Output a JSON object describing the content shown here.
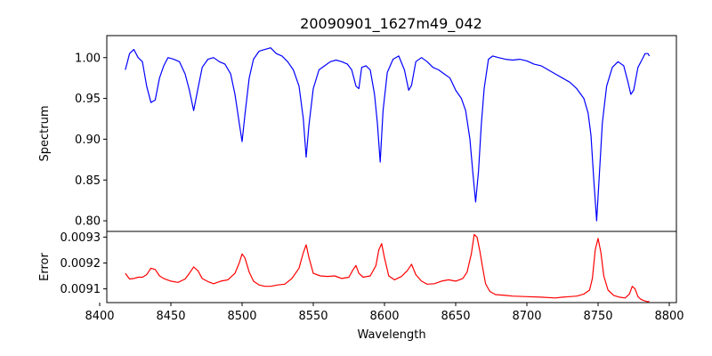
{
  "chart_data": [
    {
      "type": "line",
      "panel": "top",
      "title": "20090901_1627m49_042",
      "xlabel": "",
      "ylabel": "Spectrum",
      "xlim": [
        8405,
        8805
      ],
      "ylim": [
        0.787,
        1.027
      ],
      "yticks": [
        0.8,
        0.85,
        0.9,
        0.95,
        1.0
      ],
      "ytick_labels": [
        "0.80",
        "0.85",
        "0.90",
        "0.95",
        "1.00"
      ],
      "grid": false,
      "series": [
        {
          "color": "#0000ff",
          "x": [
            8418,
            8421,
            8424,
            8427,
            8430,
            8433,
            8436,
            8439,
            8442,
            8445,
            8448,
            8452,
            8456,
            8460,
            8463,
            8466,
            8469,
            8472,
            8476,
            8480,
            8484,
            8488,
            8492,
            8495,
            8498,
            8500,
            8502,
            8505,
            8508,
            8512,
            8516,
            8520,
            8524,
            8528,
            8532,
            8536,
            8540,
            8543,
            8545,
            8547,
            8550,
            8554,
            8558,
            8562,
            8566,
            8570,
            8574,
            8577,
            8580,
            8582,
            8584,
            8587,
            8590,
            8593,
            8595,
            8597,
            8599,
            8602,
            8606,
            8610,
            8614,
            8617,
            8619,
            8622,
            8626,
            8630,
            8634,
            8638,
            8642,
            8646,
            8650,
            8654,
            8657,
            8660,
            8662,
            8664,
            8666,
            8668,
            8670,
            8673,
            8676,
            8680,
            8685,
            8690,
            8695,
            8700,
            8705,
            8710,
            8715,
            8720,
            8725,
            8730,
            8735,
            8740,
            8743,
            8745,
            8747,
            8749,
            8751,
            8753,
            8756,
            8760,
            8764,
            8768,
            8771,
            8773,
            8775,
            8778,
            8781,
            8783,
            8785,
            8786
          ],
          "values": [
            0.985,
            1.005,
            1.01,
            1.0,
            0.995,
            0.965,
            0.945,
            0.948,
            0.975,
            0.99,
            1.0,
            0.998,
            0.995,
            0.98,
            0.96,
            0.935,
            0.962,
            0.988,
            0.998,
            1.0,
            0.995,
            0.992,
            0.98,
            0.955,
            0.92,
            0.897,
            0.93,
            0.975,
            0.998,
            1.008,
            1.01,
            1.012,
            1.005,
            1.002,
            0.995,
            0.985,
            0.965,
            0.925,
            0.878,
            0.918,
            0.962,
            0.985,
            0.99,
            0.995,
            0.997,
            0.995,
            0.992,
            0.985,
            0.965,
            0.962,
            0.988,
            0.99,
            0.985,
            0.955,
            0.92,
            0.872,
            0.935,
            0.982,
            0.998,
            1.002,
            0.985,
            0.96,
            0.966,
            0.995,
            1.0,
            0.995,
            0.988,
            0.985,
            0.98,
            0.975,
            0.96,
            0.95,
            0.935,
            0.9,
            0.86,
            0.823,
            0.86,
            0.918,
            0.962,
            0.998,
            1.002,
            1.0,
            0.998,
            0.997,
            0.998,
            0.996,
            0.992,
            0.99,
            0.985,
            0.98,
            0.975,
            0.97,
            0.962,
            0.95,
            0.932,
            0.905,
            0.85,
            0.8,
            0.86,
            0.92,
            0.965,
            0.988,
            0.995,
            0.99,
            0.97,
            0.955,
            0.96,
            0.988,
            0.998,
            1.005,
            1.005,
            1.002
          ]
        }
      ]
    },
    {
      "type": "line",
      "panel": "bottom",
      "title": "",
      "xlabel": "Wavelength",
      "ylabel": "Error",
      "xlim": [
        8405,
        8805
      ],
      "ylim": [
        0.009047,
        0.009322
      ],
      "xticks": [
        8400,
        8450,
        8500,
        8550,
        8600,
        8650,
        8700,
        8750,
        8800
      ],
      "xtick_labels": [
        "8400",
        "8450",
        "8500",
        "8550",
        "8600",
        "8650",
        "8700",
        "8750",
        "8800"
      ],
      "yticks": [
        0.0091,
        0.0092,
        0.0093
      ],
      "ytick_labels": [
        "0.0091",
        "0.0092",
        "0.0093"
      ],
      "grid": false,
      "series": [
        {
          "color": "#ff0000",
          "x": [
            8418,
            8421,
            8424,
            8427,
            8430,
            8433,
            8436,
            8439,
            8442,
            8445,
            8450,
            8455,
            8460,
            8463,
            8466,
            8469,
            8472,
            8476,
            8480,
            8485,
            8490,
            8495,
            8498,
            8500,
            8502,
            8505,
            8508,
            8512,
            8516,
            8520,
            8525,
            8530,
            8535,
            8540,
            8543,
            8545,
            8547,
            8550,
            8555,
            8560,
            8565,
            8570,
            8575,
            8578,
            8580,
            8582,
            8585,
            8590,
            8594,
            8596,
            8598,
            8600,
            8603,
            8607,
            8612,
            8616,
            8619,
            8622,
            8626,
            8630,
            8635,
            8640,
            8645,
            8650,
            8655,
            8658,
            8661,
            8663,
            8665,
            8667,
            8669,
            8671,
            8674,
            8678,
            8685,
            8690,
            8700,
            8710,
            8720,
            8725,
            8730,
            8735,
            8740,
            8744,
            8746,
            8748,
            8750,
            8752,
            8754,
            8757,
            8761,
            8765,
            8769,
            8772,
            8774,
            8776,
            8778,
            8780,
            8782,
            8785,
            8786
          ],
          "values": [
            0.00916,
            0.009138,
            0.00914,
            0.009145,
            0.009145,
            0.009155,
            0.00918,
            0.009175,
            0.00915,
            0.00914,
            0.00913,
            0.009125,
            0.009138,
            0.00916,
            0.009185,
            0.00917,
            0.00914,
            0.009128,
            0.00912,
            0.00913,
            0.009135,
            0.00916,
            0.0092,
            0.009235,
            0.00922,
            0.009165,
            0.00913,
            0.009115,
            0.00911,
            0.00911,
            0.009115,
            0.009118,
            0.00914,
            0.00918,
            0.00924,
            0.00927,
            0.00922,
            0.00916,
            0.00915,
            0.009148,
            0.00915,
            0.00914,
            0.009145,
            0.009175,
            0.00919,
            0.00916,
            0.009145,
            0.00915,
            0.00919,
            0.00925,
            0.009275,
            0.00922,
            0.00915,
            0.009135,
            0.009148,
            0.00917,
            0.009195,
            0.009155,
            0.00913,
            0.009118,
            0.00912,
            0.00913,
            0.009135,
            0.00913,
            0.00914,
            0.009165,
            0.009235,
            0.00931,
            0.0093,
            0.009245,
            0.00918,
            0.00912,
            0.00909,
            0.009078,
            0.009075,
            0.009072,
            0.00907,
            0.009068,
            0.009065,
            0.009068,
            0.00907,
            0.009072,
            0.00908,
            0.009095,
            0.00914,
            0.00925,
            0.009295,
            0.00924,
            0.00915,
            0.009095,
            0.009075,
            0.009068,
            0.009065,
            0.00908,
            0.00911,
            0.0091,
            0.00907,
            0.00906,
            0.009055,
            0.00905,
            0.009052
          ]
        }
      ]
    }
  ]
}
